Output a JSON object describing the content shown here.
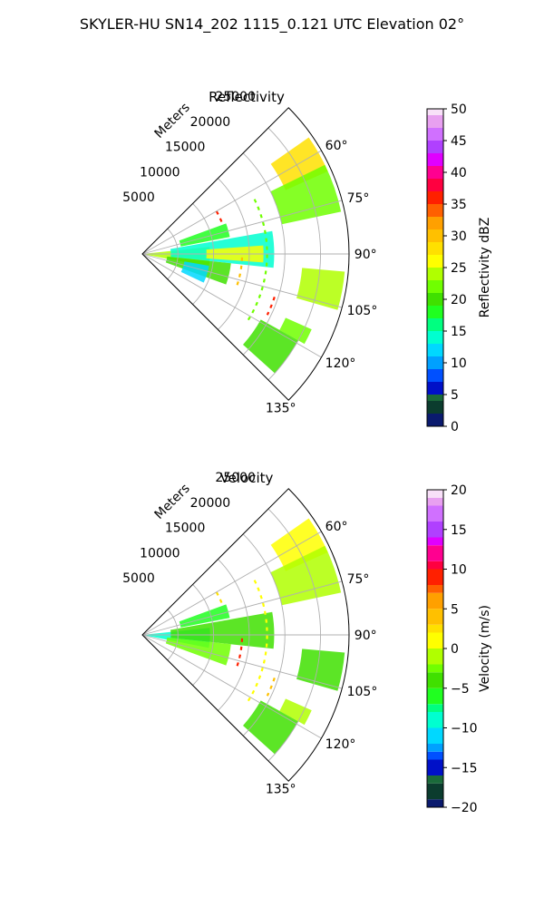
{
  "figure_title": "SKYLER-HU  SN14_202  1115_0.121 UTC Elevation 02°",
  "chart_data": [
    {
      "type": "heatmap",
      "title": "Reflectivity",
      "radial_label": "Meters",
      "r_ticks": [
        5000,
        10000,
        15000,
        20000,
        25000
      ],
      "r_tick_labels": [
        "5000",
        "10000",
        "15000",
        "20000",
        "25000"
      ],
      "r_range": [
        0,
        29000
      ],
      "theta_range_deg": [
        45,
        135
      ],
      "theta_ticks": [
        60,
        75,
        90,
        105,
        120,
        135
      ],
      "theta_tick_labels": [
        "60°",
        "75°",
        "90°",
        "105°",
        "120°",
        "135°"
      ],
      "grid": true,
      "colorbar": {
        "label": "Reflectivity dBZ",
        "range": [
          0,
          50
        ],
        "ticks": [
          0,
          5,
          10,
          15,
          20,
          25,
          30,
          35,
          40,
          45,
          50
        ],
        "tick_labels": [
          "0",
          "5",
          "10",
          "15",
          "20",
          "25",
          "30",
          "35",
          "40",
          "45",
          "50"
        ],
        "colormap": [
          {
            "v": 0,
            "color": "#0a1a6e"
          },
          {
            "v": 2,
            "color": "#0b3c2e"
          },
          {
            "v": 4,
            "color": "#1a6a3a"
          },
          {
            "v": 5,
            "color": "#0010c8"
          },
          {
            "v": 7,
            "color": "#0050ff"
          },
          {
            "v": 9,
            "color": "#00a0ff"
          },
          {
            "v": 11,
            "color": "#00d8ff"
          },
          {
            "v": 13,
            "color": "#00ffd0"
          },
          {
            "v": 15,
            "color": "#00ff80"
          },
          {
            "v": 17,
            "color": "#20ff20"
          },
          {
            "v": 19,
            "color": "#40e000"
          },
          {
            "v": 21,
            "color": "#70ff00"
          },
          {
            "v": 23,
            "color": "#b0ff00"
          },
          {
            "v": 25,
            "color": "#ffff00"
          },
          {
            "v": 27,
            "color": "#ffe000"
          },
          {
            "v": 29,
            "color": "#ffc000"
          },
          {
            "v": 31,
            "color": "#ffa000"
          },
          {
            "v": 33,
            "color": "#ff6000"
          },
          {
            "v": 35,
            "color": "#ff2000"
          },
          {
            "v": 37,
            "color": "#ff0040"
          },
          {
            "v": 39,
            "color": "#ff0090"
          },
          {
            "v": 41,
            "color": "#e000ff"
          },
          {
            "v": 43,
            "color": "#b040ff"
          },
          {
            "v": 45,
            "color": "#d070ff"
          },
          {
            "v": 47,
            "color": "#e8a0f0"
          },
          {
            "v": 49,
            "color": "#f8e0f8"
          },
          {
            "v": 50,
            "color": "#fff0ff"
          }
        ]
      },
      "features": [
        {
          "kind": "sector",
          "theta": [
            84,
            101
          ],
          "r": [
            0,
            9500
          ],
          "value": 24
        },
        {
          "kind": "sector",
          "theta": [
            80,
            96
          ],
          "r": [
            4000,
            18500
          ],
          "value": 13
        },
        {
          "kind": "sector",
          "theta": [
            86,
            94
          ],
          "r": [
            9000,
            17000
          ],
          "value": 26
        },
        {
          "kind": "sector",
          "theta": [
            70,
            79
          ],
          "r": [
            5500,
            12500
          ],
          "value": 18
        },
        {
          "kind": "sector",
          "theta": [
            96,
            110
          ],
          "r": [
            3500,
            12500
          ],
          "value": 20
        },
        {
          "kind": "sector",
          "theta": [
            100,
            115
          ],
          "r": [
            6000,
            9500
          ],
          "value": 12
        },
        {
          "kind": "sector",
          "theta": [
            55,
            66
          ],
          "r": [
            22000,
            28500
          ],
          "value": 28
        },
        {
          "kind": "sector",
          "theta": [
            64,
            78
          ],
          "r": [
            20000,
            28500
          ],
          "value": 21
        },
        {
          "kind": "sector",
          "theta": [
            95,
            106
          ],
          "r": [
            22500,
            28500
          ],
          "value": 24
        },
        {
          "kind": "sector",
          "theta": [
            119,
            132
          ],
          "r": [
            19000,
            25000
          ],
          "value": 20
        },
        {
          "kind": "sector",
          "theta": [
            114,
            119
          ],
          "r": [
            22000,
            26000
          ],
          "value": 21
        },
        {
          "kind": "line",
          "theta": [
            64,
            122
          ],
          "r": 17500,
          "value": 22
        },
        {
          "kind": "line",
          "theta": [
            92,
            110
          ],
          "r": 14000,
          "value": 30
        },
        {
          "kind": "line",
          "theta": [
            108,
            116
          ],
          "r": 19500,
          "value": 36
        },
        {
          "kind": "line",
          "theta": [
            60,
            70
          ],
          "r": 12000,
          "value": 36
        }
      ]
    },
    {
      "type": "heatmap",
      "title": "Velocity",
      "radial_label": "Meters",
      "r_ticks": [
        5000,
        10000,
        15000,
        20000,
        25000
      ],
      "r_tick_labels": [
        "5000",
        "10000",
        "15000",
        "20000",
        "25000"
      ],
      "r_range": [
        0,
        29000
      ],
      "theta_range_deg": [
        45,
        135
      ],
      "theta_ticks": [
        60,
        75,
        90,
        105,
        120,
        135
      ],
      "theta_tick_labels": [
        "60°",
        "75°",
        "90°",
        "105°",
        "120°",
        "135°"
      ],
      "grid": true,
      "colorbar": {
        "label": "Velocity (m/s)",
        "range": [
          -20,
          20
        ],
        "ticks": [
          -20,
          -15,
          -10,
          -5,
          0,
          5,
          10,
          15,
          20
        ],
        "tick_labels": [
          "−20",
          "−15",
          "−10",
          "−5",
          "0",
          "5",
          "10",
          "15",
          "20"
        ],
        "colormap": [
          {
            "v": -20,
            "color": "#0a1a6e"
          },
          {
            "v": -19,
            "color": "#0b3c2e"
          },
          {
            "v": -17,
            "color": "#1a6a3a"
          },
          {
            "v": -16,
            "color": "#0010c8"
          },
          {
            "v": -14,
            "color": "#0050ff"
          },
          {
            "v": -13,
            "color": "#00a0ff"
          },
          {
            "v": -12,
            "color": "#00d8ff"
          },
          {
            "v": -10,
            "color": "#00ffd0"
          },
          {
            "v": -8,
            "color": "#00ff80"
          },
          {
            "v": -7,
            "color": "#20ff20"
          },
          {
            "v": -5,
            "color": "#40e000"
          },
          {
            "v": -3,
            "color": "#70ff00"
          },
          {
            "v": -2,
            "color": "#b0ff00"
          },
          {
            "v": 0,
            "color": "#ffff00"
          },
          {
            "v": 2,
            "color": "#ffe000"
          },
          {
            "v": 3,
            "color": "#ffc000"
          },
          {
            "v": 5,
            "color": "#ffa000"
          },
          {
            "v": 7,
            "color": "#ff6000"
          },
          {
            "v": 8,
            "color": "#ff2000"
          },
          {
            "v": 10,
            "color": "#ff0040"
          },
          {
            "v": 11,
            "color": "#ff0090"
          },
          {
            "v": 13,
            "color": "#e000ff"
          },
          {
            "v": 14,
            "color": "#b040ff"
          },
          {
            "v": 16,
            "color": "#d070ff"
          },
          {
            "v": 18,
            "color": "#e8a0f0"
          },
          {
            "v": 19,
            "color": "#f8e0f8"
          },
          {
            "v": 20,
            "color": "#fff0ff"
          }
        ]
      },
      "features": [
        {
          "kind": "sector",
          "theta": [
            84,
            101
          ],
          "r": [
            0,
            9500
          ],
          "value": -9
        },
        {
          "kind": "sector",
          "theta": [
            80,
            96
          ],
          "r": [
            4000,
            18500
          ],
          "value": -4
        },
        {
          "kind": "sector",
          "theta": [
            70,
            79
          ],
          "r": [
            5500,
            12500
          ],
          "value": -6
        },
        {
          "kind": "sector",
          "theta": [
            96,
            110
          ],
          "r": [
            3500,
            12500
          ],
          "value": -3
        },
        {
          "kind": "sector",
          "theta": [
            55,
            66
          ],
          "r": [
            22000,
            28500
          ],
          "value": 0
        },
        {
          "kind": "sector",
          "theta": [
            64,
            78
          ],
          "r": [
            20000,
            28500
          ],
          "value": -1
        },
        {
          "kind": "sector",
          "theta": [
            95,
            106
          ],
          "r": [
            22500,
            28500
          ],
          "value": -4
        },
        {
          "kind": "sector",
          "theta": [
            119,
            132
          ],
          "r": [
            19000,
            25000
          ],
          "value": -4
        },
        {
          "kind": "sector",
          "theta": [
            114,
            119
          ],
          "r": [
            22000,
            26000
          ],
          "value": -2
        },
        {
          "kind": "line",
          "theta": [
            64,
            122
          ],
          "r": 17500,
          "value": 0
        },
        {
          "kind": "line",
          "theta": [
            92,
            110
          ],
          "r": 14000,
          "value": 8
        },
        {
          "kind": "line",
          "theta": [
            108,
            116
          ],
          "r": 19500,
          "value": 3
        },
        {
          "kind": "line",
          "theta": [
            60,
            70
          ],
          "r": 12000,
          "value": 2
        }
      ]
    }
  ]
}
